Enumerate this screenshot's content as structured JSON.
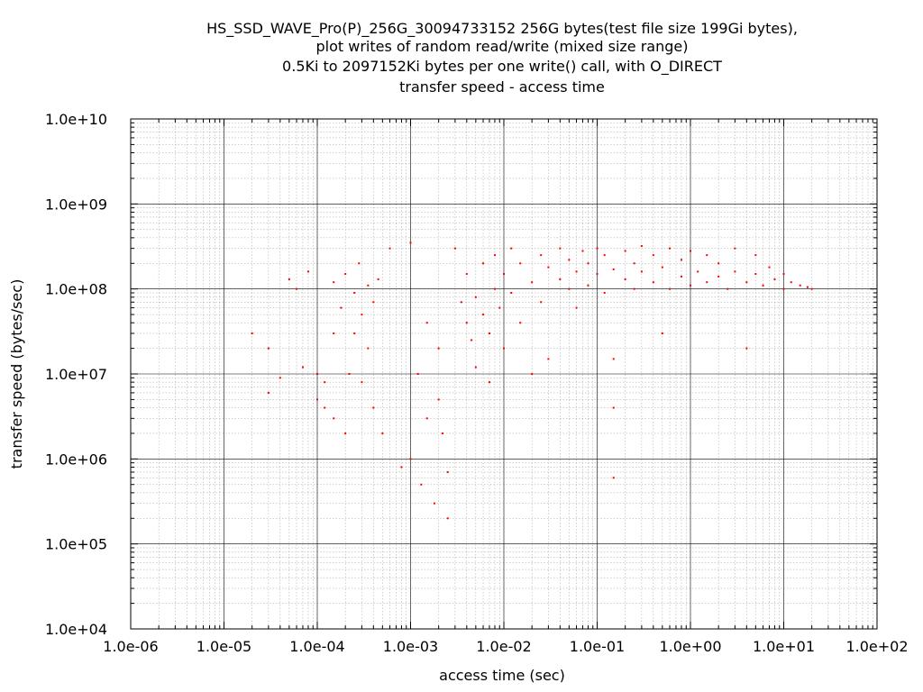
{
  "chart_data": {
    "type": "scatter",
    "title_lines": [
      "HS_SSD_WAVE_Pro(P)_256G_30094733152 256G bytes(test file size 199Gi bytes),",
      "plot writes of random read/write (mixed size range)",
      "0.5Ki to 2097152Ki bytes per one write() call, with O_DIRECT",
      "transfer speed - access time"
    ],
    "xlabel": "access time (sec)",
    "ylabel": "transfer speed (bytes/sec)",
    "xscale": "log",
    "yscale": "log",
    "xlim": [
      1e-06,
      100
    ],
    "ylim": [
      10000,
      10000000000
    ],
    "x_tick_labels": [
      "1.0e-06",
      "1.0e-05",
      "1.0e-04",
      "1.0e-03",
      "1.0e-02",
      "1.0e-01",
      "1.0e+00",
      "1.0e+01",
      "1.0e+02"
    ],
    "y_tick_labels": [
      "1.0e+04",
      "1.0e+05",
      "1.0e+06",
      "1.0e+07",
      "1.0e+08",
      "1.0e+09",
      "1.0e+10"
    ],
    "grid": true,
    "marker_color": "#ff0000",
    "series": [
      {
        "values": [
          [
            2e-05,
            30000000
          ],
          [
            3e-05,
            20000000
          ],
          [
            3e-05,
            6000000
          ],
          [
            4e-05,
            9000000
          ],
          [
            5e-05,
            130000000
          ],
          [
            6e-05,
            100000000
          ],
          [
            7e-05,
            12000000
          ],
          [
            8e-05,
            160000000
          ],
          [
            0.0001,
            10000000
          ],
          [
            0.0001,
            5000000
          ],
          [
            0.00012,
            8000000
          ],
          [
            0.00012,
            4000000
          ],
          [
            0.00015,
            30000000
          ],
          [
            0.00015,
            120000000
          ],
          [
            0.00015,
            3000000
          ],
          [
            0.00018,
            60000000
          ],
          [
            0.0002,
            150000000
          ],
          [
            0.0002,
            2000000
          ],
          [
            0.00022,
            10000000
          ],
          [
            0.00025,
            90000000
          ],
          [
            0.00025,
            30000000
          ],
          [
            0.00028,
            200000000
          ],
          [
            0.0003,
            8000000
          ],
          [
            0.0003,
            50000000
          ],
          [
            0.00035,
            110000000
          ],
          [
            0.00035,
            20000000
          ],
          [
            0.0004,
            70000000
          ],
          [
            0.0004,
            4000000
          ],
          [
            0.00045,
            130000000
          ],
          [
            0.0005,
            2000000
          ],
          [
            0.0006,
            300000000
          ],
          [
            0.0008,
            800000
          ],
          [
            0.001,
            1000000
          ],
          [
            0.001,
            350000000
          ],
          [
            0.0012,
            10000000
          ],
          [
            0.0013,
            500000
          ],
          [
            0.0015,
            3000000
          ],
          [
            0.0015,
            40000000
          ],
          [
            0.0018,
            300000
          ],
          [
            0.002,
            5000000
          ],
          [
            0.002,
            20000000
          ],
          [
            0.0022,
            2000000
          ],
          [
            0.0025,
            700000
          ],
          [
            0.0025,
            200000
          ],
          [
            0.003,
            300000000
          ],
          [
            0.0035,
            70000000
          ],
          [
            0.004,
            40000000
          ],
          [
            0.004,
            150000000
          ],
          [
            0.0045,
            25000000
          ],
          [
            0.005,
            80000000
          ],
          [
            0.005,
            12000000
          ],
          [
            0.006,
            50000000
          ],
          [
            0.006,
            200000000
          ],
          [
            0.007,
            30000000
          ],
          [
            0.007,
            8000000
          ],
          [
            0.008,
            100000000
          ],
          [
            0.008,
            250000000
          ],
          [
            0.009,
            60000000
          ],
          [
            0.01,
            150000000
          ],
          [
            0.01,
            20000000
          ],
          [
            0.012,
            300000000
          ],
          [
            0.012,
            90000000
          ],
          [
            0.015,
            200000000
          ],
          [
            0.015,
            40000000
          ],
          [
            0.02,
            120000000
          ],
          [
            0.02,
            10000000
          ],
          [
            0.025,
            250000000
          ],
          [
            0.025,
            70000000
          ],
          [
            0.03,
            180000000
          ],
          [
            0.03,
            15000000
          ],
          [
            0.04,
            130000000
          ],
          [
            0.04,
            300000000
          ],
          [
            0.05,
            100000000
          ],
          [
            0.05,
            220000000
          ],
          [
            0.06,
            160000000
          ],
          [
            0.06,
            60000000
          ],
          [
            0.07,
            280000000
          ],
          [
            0.08,
            110000000
          ],
          [
            0.08,
            200000000
          ],
          [
            0.1,
            150000000
          ],
          [
            0.1,
            300000000
          ],
          [
            0.12,
            90000000
          ],
          [
            0.12,
            250000000
          ],
          [
            0.15,
            170000000
          ],
          [
            0.15,
            15000000
          ],
          [
            0.15,
            4000000
          ],
          [
            0.15,
            600000
          ],
          [
            0.2,
            130000000
          ],
          [
            0.2,
            280000000
          ],
          [
            0.25,
            200000000
          ],
          [
            0.25,
            100000000
          ],
          [
            0.3,
            160000000
          ],
          [
            0.3,
            320000000
          ],
          [
            0.4,
            120000000
          ],
          [
            0.4,
            250000000
          ],
          [
            0.5,
            180000000
          ],
          [
            0.5,
            30000000
          ],
          [
            0.6,
            100000000
          ],
          [
            0.6,
            300000000
          ],
          [
            0.8,
            140000000
          ],
          [
            0.8,
            220000000
          ],
          [
            1,
            110000000
          ],
          [
            1,
            280000000
          ],
          [
            1.2,
            160000000
          ],
          [
            1.5,
            120000000
          ],
          [
            1.5,
            250000000
          ],
          [
            2,
            140000000
          ],
          [
            2,
            200000000
          ],
          [
            2.5,
            100000000
          ],
          [
            3,
            160000000
          ],
          [
            3,
            300000000
          ],
          [
            4,
            120000000
          ],
          [
            4,
            20000000
          ],
          [
            5,
            150000000
          ],
          [
            5,
            250000000
          ],
          [
            6,
            110000000
          ],
          [
            7,
            180000000
          ],
          [
            8,
            130000000
          ],
          [
            10,
            150000000
          ],
          [
            10,
            100000000
          ],
          [
            12,
            120000000
          ],
          [
            15,
            110000000
          ],
          [
            18,
            105000000
          ],
          [
            20,
            100000000
          ]
        ]
      }
    ]
  }
}
